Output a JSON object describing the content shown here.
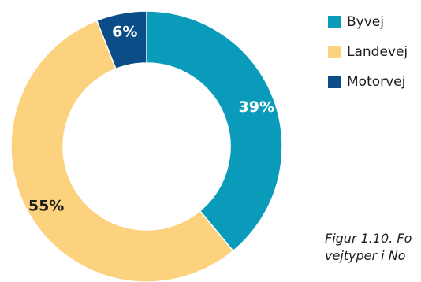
{
  "chart_data": {
    "type": "pie",
    "donut": true,
    "categories": [
      "Byvej",
      "Landevej",
      "Motorvej"
    ],
    "values": [
      39,
      55,
      6
    ],
    "data_labels": [
      "39%",
      "55%",
      "6%"
    ],
    "colors": [
      "#0a9bbb",
      "#fcd27f",
      "#0b4e87"
    ],
    "label_colors": [
      "#ffffff",
      "#1d1d1b",
      "#ffffff"
    ],
    "legend_position": "top-right",
    "start_angle_deg": 0,
    "direction": "clockwise"
  },
  "legend": {
    "items": [
      {
        "label": "Byvej",
        "color": "#0a9bbb"
      },
      {
        "label": "Landevej",
        "color": "#fcd27f"
      },
      {
        "label": "Motorvej",
        "color": "#0b4e87"
      }
    ]
  },
  "caption": {
    "line1": "Figur 1.10. Fo",
    "line2": "vejtyper i No"
  }
}
